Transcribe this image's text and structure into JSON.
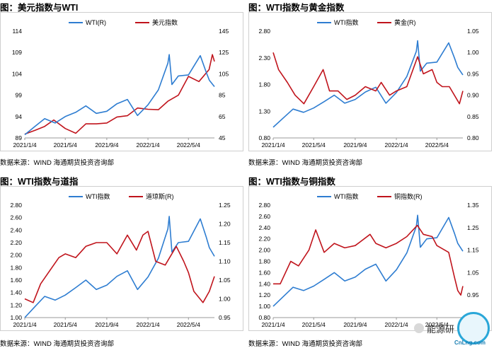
{
  "panels": [
    {
      "title": "图：美元指数与WTI",
      "source": "数据来源：WIND    海通期货投资咨询部"
    },
    {
      "title": "图：WTI指数与黄金指数",
      "source": "数据来源：WIND    海通期货投资咨询部"
    },
    {
      "title": "图：WTI指数与道指",
      "source": "数据来源：WIND    海通期货投资咨询部"
    },
    {
      "title": "图：WTI指数与铜指数",
      "source": "数据来源：WIND    海通期货投资咨询部"
    }
  ],
  "watermark": {
    "text": "能源研",
    "logo_text": "CnLng.com"
  },
  "colors": {
    "blue": "#2e7dd1",
    "red": "#c0141c"
  },
  "chart_data": [
    {
      "type": "line",
      "x_ticks": [
        "2021/1/4",
        "2021/5/4",
        "2021/9/4",
        "2022/1/4",
        "2022/5/4"
      ],
      "x_range": [
        "2021-01-04",
        "2022-07-20"
      ],
      "left_ticks": [
        "89",
        "94",
        "99",
        "104",
        "109",
        "114"
      ],
      "right_ticks": [
        "45",
        "65",
        "85",
        "105",
        "125",
        "145"
      ],
      "ylim_left": [
        89,
        114
      ],
      "ylim_right": [
        45,
        145
      ],
      "legend_position": "top",
      "series": [
        {
          "name": "美元指数",
          "axis": "left",
          "color": "#c0141c",
          "x": [
            "2021-01-04",
            "2021-02-04",
            "2021-03-04",
            "2021-03-31",
            "2021-05-04",
            "2021-06-04",
            "2021-07-04",
            "2021-08-04",
            "2021-09-04",
            "2021-10-04",
            "2021-11-04",
            "2021-12-04",
            "2022-01-04",
            "2022-02-04",
            "2022-03-04",
            "2022-04-04",
            "2022-05-04",
            "2022-06-04",
            "2022-07-04",
            "2022-07-14",
            "2022-07-20"
          ],
          "y": [
            89.9,
            90.8,
            91.7,
            93.2,
            91.2,
            90.1,
            92.3,
            92.3,
            92.5,
            93.9,
            94.2,
            96.0,
            95.7,
            95.6,
            97.6,
            99.0,
            103.4,
            102.2,
            105.0,
            108.5,
            106.9
          ]
        },
        {
          "name": "WTI(R)",
          "axis": "right",
          "color": "#2e7dd1",
          "x": [
            "2021-01-04",
            "2021-02-04",
            "2021-03-04",
            "2021-04-04",
            "2021-05-04",
            "2021-06-04",
            "2021-07-04",
            "2021-08-04",
            "2021-09-04",
            "2021-10-04",
            "2021-11-04",
            "2021-12-04",
            "2022-01-04",
            "2022-02-04",
            "2022-03-04",
            "2022-03-08",
            "2022-03-16",
            "2022-04-04",
            "2022-05-04",
            "2022-06-08",
            "2022-06-25",
            "2022-07-05",
            "2022-07-20"
          ],
          "y": [
            48,
            56,
            63,
            59,
            65,
            69,
            75,
            68,
            70,
            77,
            81,
            66,
            76,
            90,
            115,
            123,
            95,
            103,
            104,
            122,
            107,
            99,
            93
          ]
        }
      ]
    },
    {
      "type": "line",
      "x_ticks": [
        "2021/1/4",
        "2021/5/4",
        "2021/9/4",
        "2022/1/4",
        "2022/5/4"
      ],
      "x_range": [
        "2021-01-04",
        "2022-07-20"
      ],
      "left_ticks": [
        "0.80",
        "1.30",
        "1.80",
        "2.30",
        "2.80"
      ],
      "right_ticks": [
        "0.80",
        "0.85",
        "0.90",
        "0.95",
        "1.00",
        "1.05"
      ],
      "ylim_left": [
        0.8,
        2.8
      ],
      "ylim_right": [
        0.8,
        1.05
      ],
      "legend_position": "top",
      "series": [
        {
          "name": "WTI指数",
          "axis": "left",
          "color": "#2e7dd1",
          "x": [
            "2021-01-04",
            "2021-02-04",
            "2021-03-04",
            "2021-04-04",
            "2021-05-04",
            "2021-06-04",
            "2021-07-04",
            "2021-08-04",
            "2021-09-04",
            "2021-10-04",
            "2021-11-04",
            "2021-12-04",
            "2022-01-04",
            "2022-02-04",
            "2022-03-04",
            "2022-03-08",
            "2022-03-16",
            "2022-04-04",
            "2022-05-04",
            "2022-06-08",
            "2022-06-25",
            "2022-07-05",
            "2022-07-20"
          ],
          "y": [
            1.0,
            1.18,
            1.34,
            1.28,
            1.36,
            1.48,
            1.6,
            1.45,
            1.52,
            1.66,
            1.75,
            1.45,
            1.65,
            1.95,
            2.42,
            2.62,
            2.05,
            2.2,
            2.22,
            2.58,
            2.3,
            2.12,
            1.98
          ]
        },
        {
          "name": "黄金(R)",
          "axis": "right",
          "color": "#c0141c",
          "x": [
            "2021-01-04",
            "2021-01-20",
            "2021-02-15",
            "2021-03-10",
            "2021-04-05",
            "2021-05-04",
            "2021-06-01",
            "2021-06-20",
            "2021-07-15",
            "2021-08-10",
            "2021-09-04",
            "2021-10-04",
            "2021-11-04",
            "2021-11-20",
            "2021-12-15",
            "2022-01-04",
            "2022-02-04",
            "2022-03-08",
            "2022-03-25",
            "2022-04-20",
            "2022-05-04",
            "2022-05-20",
            "2022-06-10",
            "2022-07-10",
            "2022-07-20"
          ],
          "y": [
            1.0,
            0.96,
            0.93,
            0.9,
            0.88,
            0.92,
            0.96,
            0.91,
            0.91,
            0.89,
            0.9,
            0.92,
            0.91,
            0.93,
            0.9,
            0.91,
            0.92,
            0.99,
            0.95,
            0.96,
            0.93,
            0.92,
            0.92,
            0.88,
            0.91
          ]
        }
      ]
    },
    {
      "type": "line",
      "x_ticks": [
        "2021/1/4",
        "2021/5/4",
        "2021/9/4",
        "2022/1/4",
        "2022/5/4"
      ],
      "x_range": [
        "2021-01-04",
        "2022-07-20"
      ],
      "left_ticks": [
        "1.00",
        "1.20",
        "1.40",
        "1.60",
        "1.80",
        "2.00",
        "2.20",
        "2.40",
        "2.60",
        "2.80"
      ],
      "right_ticks": [
        "0.95",
        "1.00",
        "1.05",
        "1.10",
        "1.15",
        "1.20",
        "1.25"
      ],
      "ylim_left": [
        1.0,
        2.8
      ],
      "ylim_right": [
        0.95,
        1.25
      ],
      "legend_position": "top",
      "series": [
        {
          "name": "WTI指数",
          "axis": "left",
          "color": "#2e7dd1",
          "x": [
            "2021-01-04",
            "2021-02-04",
            "2021-03-04",
            "2021-04-04",
            "2021-05-04",
            "2021-06-04",
            "2021-07-04",
            "2021-08-04",
            "2021-09-04",
            "2021-10-04",
            "2021-11-04",
            "2021-12-04",
            "2022-01-04",
            "2022-02-04",
            "2022-03-04",
            "2022-03-08",
            "2022-03-16",
            "2022-04-04",
            "2022-05-04",
            "2022-06-08",
            "2022-06-25",
            "2022-07-05",
            "2022-07-20"
          ],
          "y": [
            1.0,
            1.18,
            1.34,
            1.28,
            1.36,
            1.48,
            1.6,
            1.45,
            1.52,
            1.66,
            1.75,
            1.45,
            1.65,
            1.95,
            2.42,
            2.62,
            2.05,
            2.2,
            2.22,
            2.58,
            2.3,
            2.12,
            1.98
          ]
        },
        {
          "name": "道琼斯(R)",
          "axis": "right",
          "color": "#c0141c",
          "x": [
            "2021-01-04",
            "2021-01-29",
            "2021-02-20",
            "2021-03-15",
            "2021-04-15",
            "2021-05-04",
            "2021-06-04",
            "2021-07-04",
            "2021-08-04",
            "2021-09-04",
            "2021-10-04",
            "2021-11-04",
            "2021-12-01",
            "2021-12-20",
            "2022-01-04",
            "2022-01-27",
            "2022-02-24",
            "2022-03-29",
            "2022-04-20",
            "2022-05-04",
            "2022-05-20",
            "2022-06-16",
            "2022-07-05",
            "2022-07-20"
          ],
          "y": [
            1.0,
            0.99,
            1.04,
            1.07,
            1.11,
            1.12,
            1.11,
            1.14,
            1.15,
            1.15,
            1.12,
            1.17,
            1.13,
            1.17,
            1.18,
            1.1,
            1.09,
            1.14,
            1.1,
            1.07,
            1.02,
            0.99,
            1.02,
            1.06
          ]
        }
      ]
    },
    {
      "type": "line",
      "x_ticks": [
        "2021/1/4",
        "2021/5/4",
        "2021/9/4",
        "2022/1/4",
        "2022/5/4"
      ],
      "x_range": [
        "2021-01-04",
        "2022-07-20"
      ],
      "left_ticks": [
        "0.80",
        "1.00",
        "1.20",
        "1.40",
        "1.60",
        "1.80",
        "2.00",
        "2.20",
        "2.40",
        "2.60",
        "2.80"
      ],
      "right_ticks": [
        "0.85",
        "0.95",
        "1.05",
        "1.15",
        "1.25",
        "1.35"
      ],
      "ylim_left": [
        0.8,
        2.8
      ],
      "ylim_right": [
        0.85,
        1.35
      ],
      "legend_position": "top",
      "series": [
        {
          "name": "WTI指数",
          "axis": "left",
          "color": "#2e7dd1",
          "x": [
            "2021-01-04",
            "2021-02-04",
            "2021-03-04",
            "2021-04-04",
            "2021-05-04",
            "2021-06-04",
            "2021-07-04",
            "2021-08-04",
            "2021-09-04",
            "2021-10-04",
            "2021-11-04",
            "2021-12-04",
            "2022-01-04",
            "2022-02-04",
            "2022-03-04",
            "2022-03-08",
            "2022-03-16",
            "2022-04-04",
            "2022-05-04",
            "2022-06-08",
            "2022-06-25",
            "2022-07-05",
            "2022-07-20"
          ],
          "y": [
            1.0,
            1.18,
            1.34,
            1.28,
            1.36,
            1.48,
            1.6,
            1.45,
            1.52,
            1.66,
            1.75,
            1.45,
            1.65,
            1.95,
            2.42,
            2.62,
            2.05,
            2.2,
            2.22,
            2.58,
            2.3,
            2.12,
            1.98
          ]
        },
        {
          "name": "铜指数(R)",
          "axis": "right",
          "color": "#c0141c",
          "x": [
            "2021-01-04",
            "2021-01-25",
            "2021-02-25",
            "2021-03-20",
            "2021-04-20",
            "2021-05-10",
            "2021-06-04",
            "2021-07-04",
            "2021-08-04",
            "2021-09-04",
            "2021-10-18",
            "2021-11-04",
            "2021-12-04",
            "2022-01-04",
            "2022-02-04",
            "2022-03-07",
            "2022-03-25",
            "2022-04-20",
            "2022-05-04",
            "2022-06-08",
            "2022-06-25",
            "2022-07-05",
            "2022-07-14",
            "2022-07-20"
          ],
          "y": [
            1.0,
            1.0,
            1.1,
            1.08,
            1.15,
            1.24,
            1.14,
            1.18,
            1.16,
            1.17,
            1.22,
            1.18,
            1.16,
            1.18,
            1.21,
            1.26,
            1.22,
            1.21,
            1.17,
            1.14,
            1.03,
            0.97,
            0.95,
            0.99
          ]
        }
      ]
    }
  ]
}
